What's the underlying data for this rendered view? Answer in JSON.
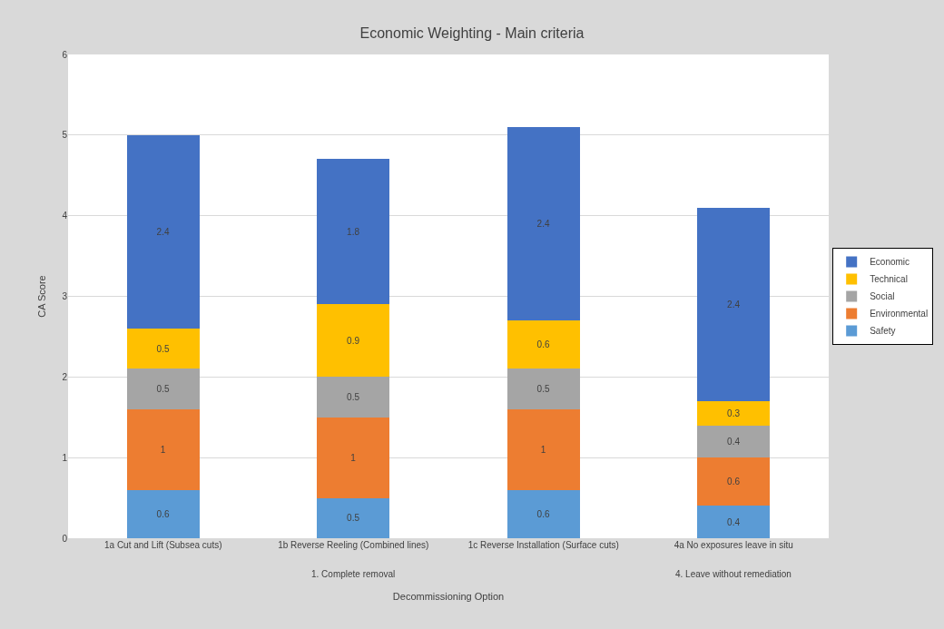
{
  "chart_data": {
    "type": "bar",
    "stacked": true,
    "title": "Economic Weighting - Main criteria",
    "xlabel": "Decommissioning Option",
    "ylabel": "CA Score",
    "categories": [
      "1a Cut and Lift (Subsea cuts)",
      "1b Reverse Reeling (Combined lines)",
      "1c Reverse Installation (Surface cuts)",
      "4a No exposures leave in situ"
    ],
    "series": [
      {
        "name": "Safety",
        "color": "#5b9bd5",
        "values": [
          0.6,
          0.5,
          0.6,
          0.4
        ]
      },
      {
        "name": "Environmental",
        "color": "#ed7d31",
        "values": [
          1,
          1,
          1,
          0.6
        ]
      },
      {
        "name": "Social",
        "color": "#a5a5a5",
        "values": [
          0.5,
          0.5,
          0.5,
          0.4
        ]
      },
      {
        "name": "Technical",
        "color": "#ffc000",
        "values": [
          0.5,
          0.9,
          0.6,
          0.3
        ]
      },
      {
        "name": "Economic",
        "color": "#4472c4",
        "values": [
          2.4,
          1.8,
          2.4,
          2.4
        ]
      }
    ],
    "annotations": [
      "1. Complete removal",
      "4. Leave without remediation"
    ],
    "ylim": [
      0,
      6
    ],
    "yticks": [
      0,
      1,
      2,
      3,
      4,
      5,
      6
    ],
    "grid": "y",
    "legend": "right",
    "data_labels": true
  }
}
